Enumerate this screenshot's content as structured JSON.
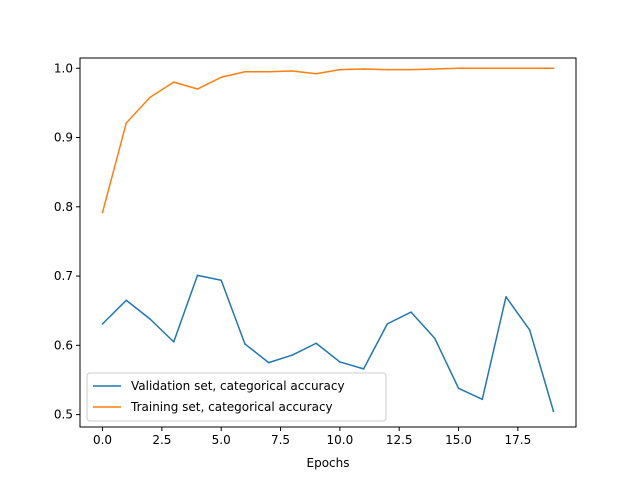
{
  "chart_data": {
    "type": "line",
    "title": "",
    "xlabel": "Epochs",
    "ylabel": "",
    "xlim": [
      -0.95,
      19.95
    ],
    "ylim": [
      0.4821,
      1.0148
    ],
    "grid": false,
    "legend_position": "lower-left",
    "xticks": [
      0.0,
      2.5,
      5.0,
      7.5,
      10.0,
      12.5,
      15.0,
      17.5
    ],
    "xtick_labels": [
      "0.0",
      "2.5",
      "5.0",
      "7.5",
      "10.0",
      "12.5",
      "15.0",
      "17.5"
    ],
    "yticks": [
      0.5,
      0.6,
      0.7,
      0.8,
      0.9,
      1.0
    ],
    "ytick_labels": [
      "0.5",
      "0.6",
      "0.7",
      "0.8",
      "0.9",
      "1.0"
    ],
    "x": [
      0,
      1,
      2,
      3,
      4,
      5,
      6,
      7,
      8,
      9,
      10,
      11,
      12,
      13,
      14,
      15,
      16,
      17,
      18,
      19
    ],
    "series": [
      {
        "name": "Validation set, categorical accuracy",
        "color": "#1f77b4",
        "values": [
          0.631,
          0.665,
          0.638,
          0.605,
          0.701,
          0.694,
          0.602,
          0.575,
          0.586,
          0.603,
          0.576,
          0.566,
          0.631,
          0.648,
          0.61,
          0.538,
          0.522,
          0.67,
          0.622,
          0.505
        ]
      },
      {
        "name": "Training set, categorical accuracy",
        "color": "#ff7f0e",
        "values": [
          0.792,
          0.921,
          0.958,
          0.98,
          0.97,
          0.987,
          0.995,
          0.995,
          0.996,
          0.992,
          0.998,
          0.999,
          0.998,
          0.998,
          0.999,
          1.0,
          1.0,
          1.0,
          1.0,
          1.0
        ]
      }
    ]
  }
}
